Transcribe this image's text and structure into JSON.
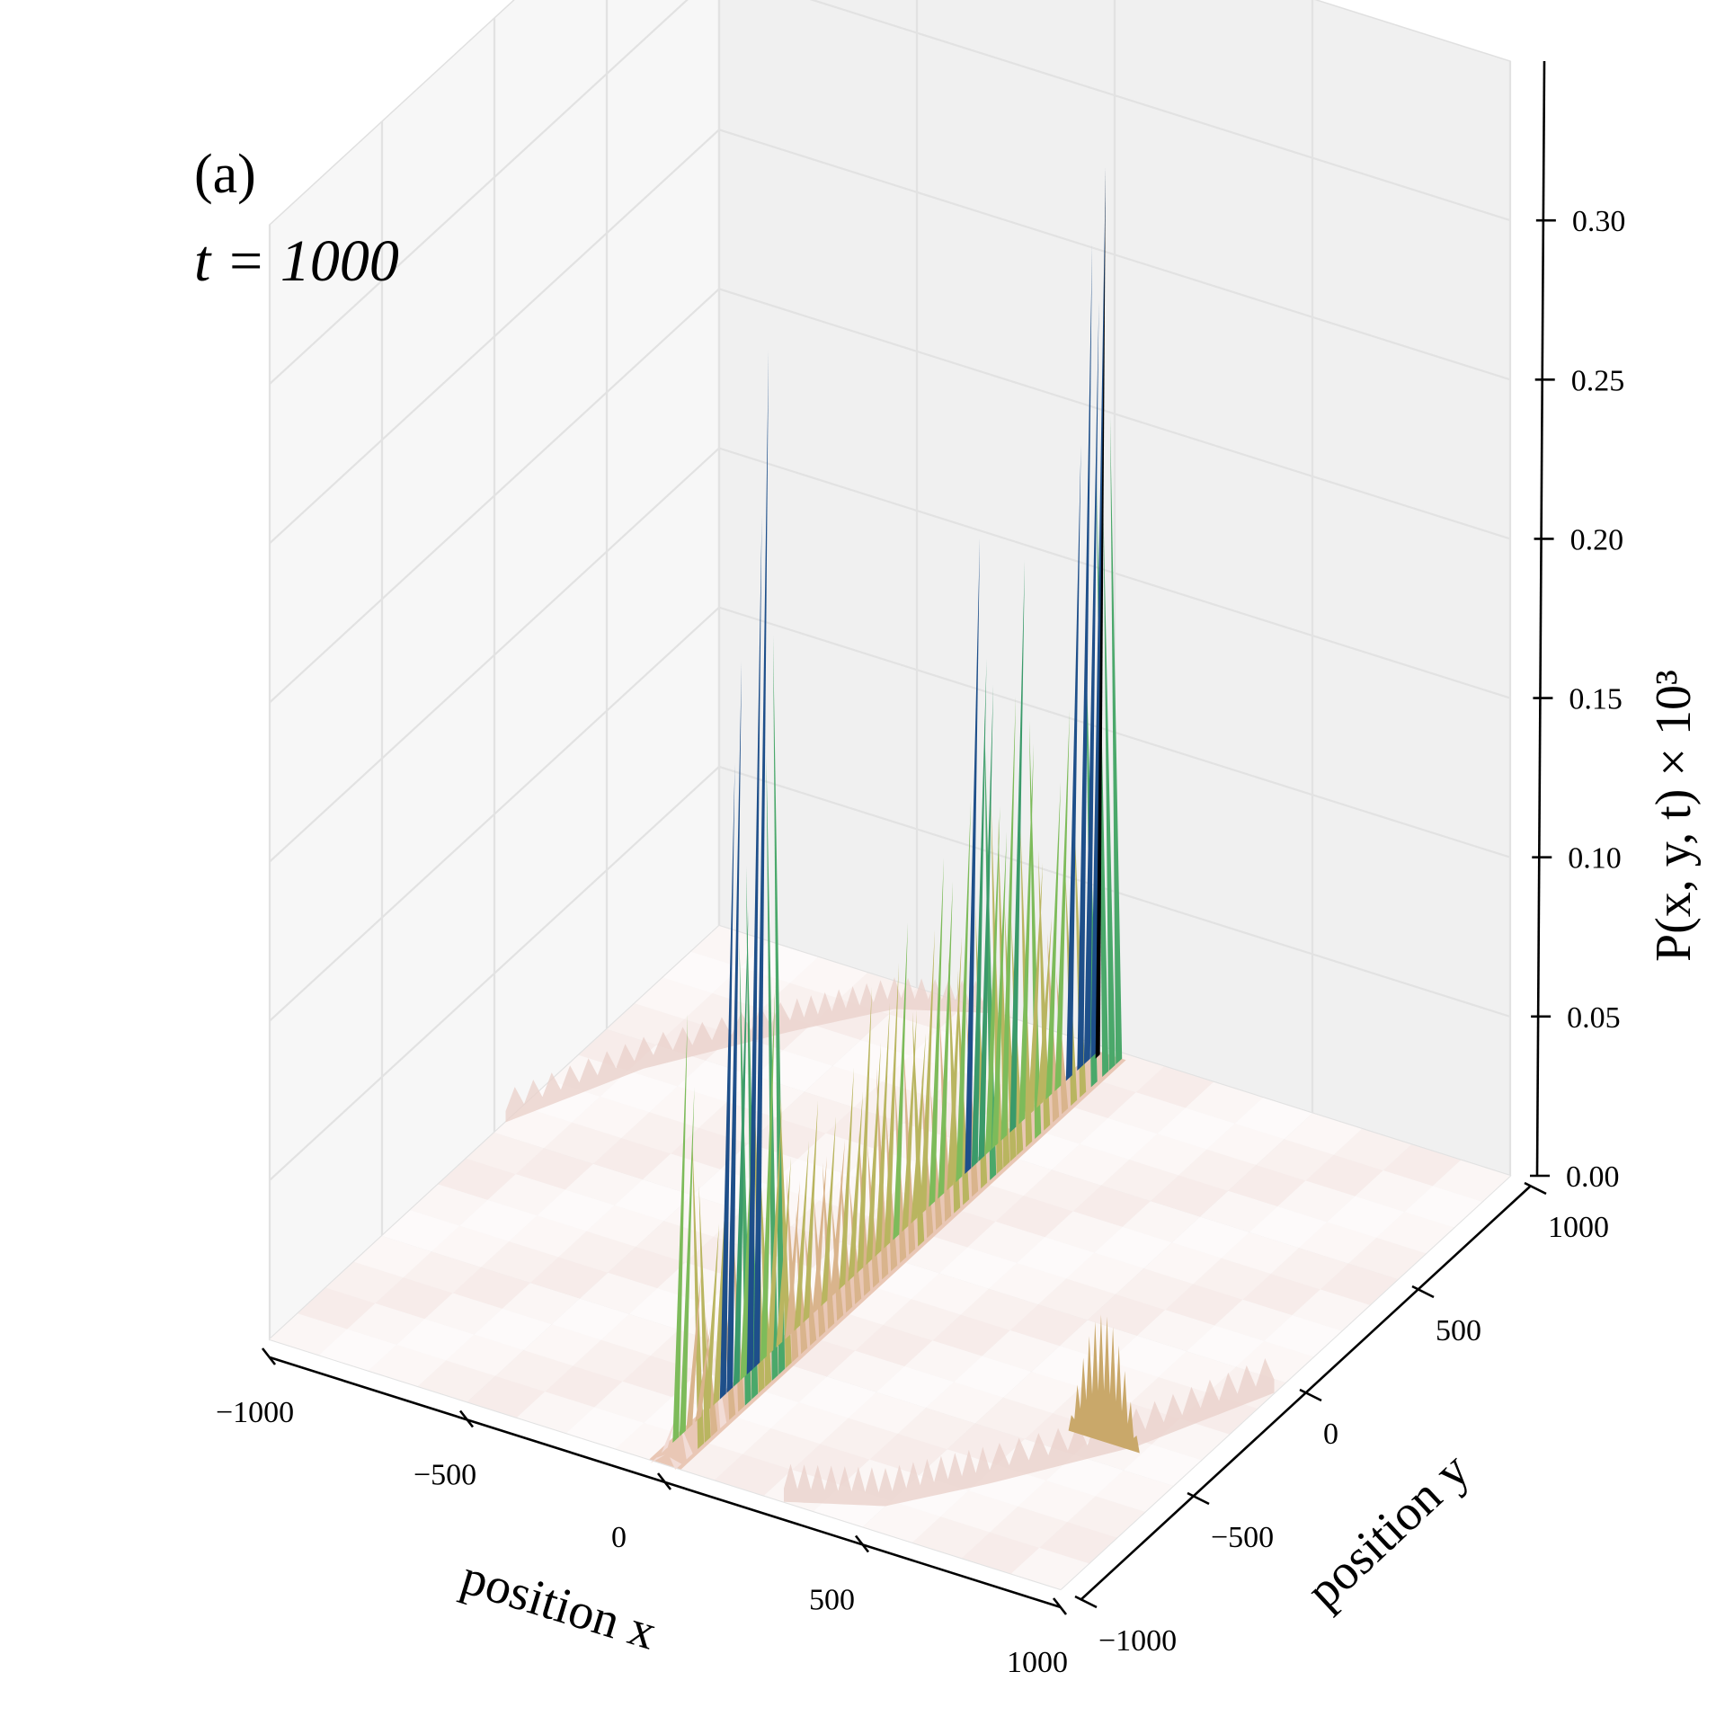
{
  "panel_label": "(a)",
  "time_label": "t = 1000",
  "chart_data": {
    "type": "surface3d",
    "title": "",
    "xlabel": "position x",
    "ylabel": "position y",
    "zlabel": "P(x, y, t) × 10³",
    "xlim": [
      -1000,
      1000
    ],
    "ylim": [
      -1000,
      1000
    ],
    "zlim": [
      0,
      0.35
    ],
    "x_ticks": [
      -1000,
      -500,
      0,
      500,
      1000
    ],
    "y_ticks": [
      -1000,
      -500,
      0,
      500,
      1000
    ],
    "z_ticks": [
      0.0,
      0.05,
      0.1,
      0.15,
      0.2,
      0.25,
      0.3
    ],
    "x_tick_labels": [
      "−1000",
      "−500",
      "0",
      "500",
      "1000"
    ],
    "y_tick_labels": [
      "−1000",
      "−500",
      "0",
      "500",
      "1000"
    ],
    "z_tick_labels": [
      "0.00",
      "0.05",
      "0.10",
      "0.15",
      "0.20",
      "0.25",
      "0.30"
    ],
    "grid": true,
    "colormap": [
      "#f2dcd6",
      "#d9b48c",
      "#b9b560",
      "#7dbb5a",
      "#3a9a6a",
      "#1e4f8a",
      "#000000"
    ],
    "ridge": {
      "x": 0,
      "peaks": [
        {
          "y": -1000,
          "z": 0.003
        },
        {
          "y": -950,
          "z": 0.012
        },
        {
          "y": -900,
          "z": 0.135
        },
        {
          "y": -870,
          "z": 0.11
        },
        {
          "y": -840,
          "z": 0.05
        },
        {
          "y": -800,
          "z": 0.03
        },
        {
          "y": -760,
          "z": 0.06
        },
        {
          "y": -720,
          "z": 0.08
        },
        {
          "y": -690,
          "z": 0.2
        },
        {
          "y": -660,
          "z": 0.23
        },
        {
          "y": -630,
          "z": 0.15
        },
        {
          "y": -600,
          "z": 0.1
        },
        {
          "y": -570,
          "z": 0.27
        },
        {
          "y": -540,
          "z": 0.32
        },
        {
          "y": -510,
          "z": 0.12
        },
        {
          "y": -480,
          "z": 0.08
        },
        {
          "y": -440,
          "z": 0.06
        },
        {
          "y": -400,
          "z": 0.05
        },
        {
          "y": -360,
          "z": 0.06
        },
        {
          "y": -320,
          "z": 0.07
        },
        {
          "y": -280,
          "z": 0.05
        },
        {
          "y": -240,
          "z": 0.06
        },
        {
          "y": -200,
          "z": 0.05
        },
        {
          "y": -160,
          "z": 0.07
        },
        {
          "y": -120,
          "z": 0.06
        },
        {
          "y": -80,
          "z": 0.09
        },
        {
          "y": -40,
          "z": 0.07
        },
        {
          "y": 0,
          "z": 0.08
        },
        {
          "y": 40,
          "z": 0.09
        },
        {
          "y": 80,
          "z": 0.1
        },
        {
          "y": 120,
          "z": 0.07
        },
        {
          "y": 160,
          "z": 0.06
        },
        {
          "y": 200,
          "z": 0.09
        },
        {
          "y": 240,
          "z": 0.11
        },
        {
          "y": 280,
          "z": 0.1
        },
        {
          "y": 320,
          "z": 0.08
        },
        {
          "y": 360,
          "z": 0.12
        },
        {
          "y": 400,
          "z": 0.2
        },
        {
          "y": 430,
          "z": 0.16
        },
        {
          "y": 460,
          "z": 0.15
        },
        {
          "y": 490,
          "z": 0.11
        },
        {
          "y": 520,
          "z": 0.1
        },
        {
          "y": 560,
          "z": 0.14
        },
        {
          "y": 600,
          "z": 0.18
        },
        {
          "y": 640,
          "z": 0.12
        },
        {
          "y": 680,
          "z": 0.08
        },
        {
          "y": 720,
          "z": 0.06
        },
        {
          "y": 760,
          "z": 0.1
        },
        {
          "y": 800,
          "z": 0.12
        },
        {
          "y": 850,
          "z": 0.2
        },
        {
          "y": 900,
          "z": 0.26
        },
        {
          "y": 930,
          "z": 0.24
        },
        {
          "y": 960,
          "z": 0.28
        }
      ]
    },
    "floor_features": [
      {
        "name": "left-arc",
        "points": [
          [
            -1000,
            50
          ],
          [
            -850,
            400
          ],
          [
            -650,
            700
          ],
          [
            -500,
            900
          ],
          [
            -300,
            1000
          ]
        ],
        "z": 0.01
      },
      {
        "name": "right-arc",
        "points": [
          [
            1000,
            -50
          ],
          [
            850,
            -400
          ],
          [
            650,
            -700
          ],
          [
            500,
            -900
          ],
          [
            300,
            -1000
          ]
        ],
        "z": 0.012
      },
      {
        "name": "right-bump",
        "points": [
          [
            780,
            -420
          ]
        ],
        "z": 0.04
      }
    ]
  }
}
